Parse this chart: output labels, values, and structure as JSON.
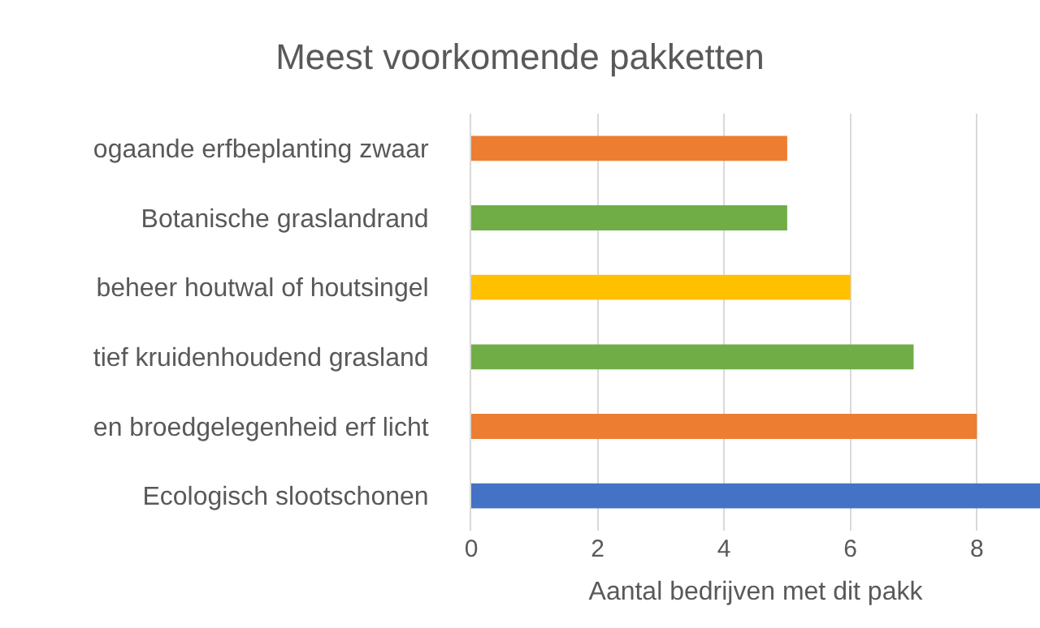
{
  "chart_data": {
    "type": "bar",
    "orientation": "horizontal",
    "title": "Meest voorkomende pakketten",
    "xlabel": "Aantal bedrijven met dit pakk",
    "categories": [
      "ogaande erfbeplanting zwaar",
      "Botanische graslandrand",
      "beheer houtwal of houtsingel",
      "tief kruidenhoudend grasland",
      "en broedgelegenheid erf licht",
      "Ecologisch slootschonen"
    ],
    "values": [
      5,
      5,
      6,
      7,
      8,
      9
    ],
    "colors": [
      "#ed7d31",
      "#70ad47",
      "#ffc000",
      "#70ad47",
      "#ed7d31",
      "#4472c4"
    ],
    "xlim": [
      0,
      9
    ],
    "xticks": [
      0,
      2,
      4,
      6,
      8
    ],
    "grid": "x"
  }
}
